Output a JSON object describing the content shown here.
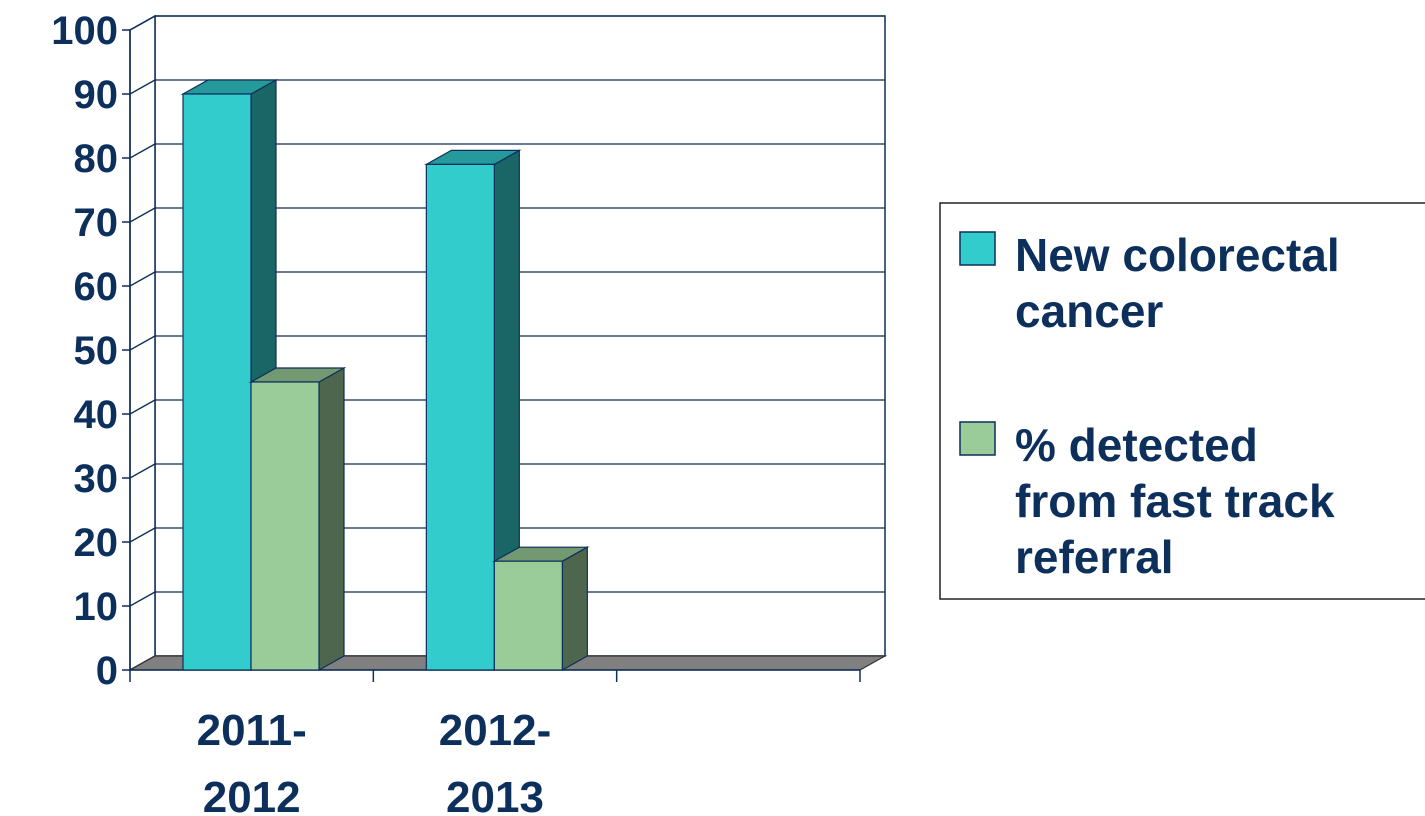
{
  "chart_data": {
    "type": "bar",
    "style": "3d-clustered-column",
    "categories": [
      {
        "line1": "2011-",
        "line2": "2012"
      },
      {
        "line1": "2012-",
        "line2": "2013"
      },
      {
        "line1": "",
        "line2": ""
      }
    ],
    "series": [
      {
        "name": "New colorectal cancer",
        "name_lines": [
          "New colorectal",
          "cancer"
        ],
        "values": [
          90,
          79,
          null
        ],
        "color_front": "#33cccc",
        "color_side": "#1a6666",
        "color_top": "#26999a"
      },
      {
        "name": "% detected from fast track referral",
        "name_lines": [
          "% detected",
          "from fast track",
          "referral"
        ],
        "values": [
          45,
          17,
          null
        ],
        "color_front": "#99cc99",
        "color_side": "#4d664d",
        "color_top": "#739973"
      }
    ],
    "ylim": [
      0,
      100
    ],
    "yticks": [
      "0",
      "10",
      "20",
      "30",
      "40",
      "50",
      "60",
      "70",
      "80",
      "90",
      "100"
    ],
    "grid": true,
    "legend_position": "right",
    "colors": {
      "text": "#0d2f5c",
      "axis": "#0d2f5c",
      "floor": "#808080"
    }
  }
}
